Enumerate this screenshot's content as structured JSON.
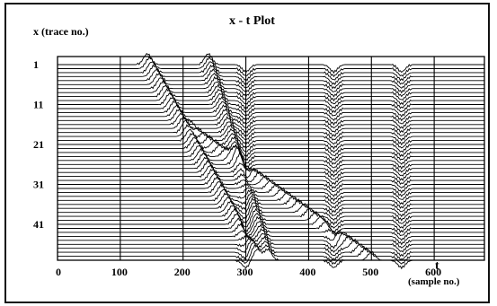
{
  "chart_data": {
    "type": "line",
    "title": "x - t Plot",
    "ylabel": "x  (trace no.)",
    "xlabel_main": "t",
    "xlabel_sub": "(sample no.)",
    "x_tick_labels": [
      "0",
      "100",
      "200",
      "300",
      "400",
      "500",
      "600"
    ],
    "x_ticks": [
      0,
      100,
      200,
      300,
      400,
      500,
      600
    ],
    "y_tick_labels": [
      "1",
      "11",
      "21",
      "31",
      "41"
    ],
    "y_ticks": [
      1,
      11,
      21,
      31,
      41
    ],
    "xlim": [
      0,
      680
    ],
    "ylim_traces": [
      1,
      50
    ],
    "trace_count": 50,
    "grid": true,
    "events": [
      {
        "t_first": 143,
        "t_last": 318,
        "polarity": "peak"
      },
      {
        "t_first": 240,
        "t_last": 335,
        "polarity": "peak"
      },
      {
        "t_first": 300,
        "t_last": 300,
        "polarity": "trough"
      },
      {
        "t_first": 440,
        "t_last": 440,
        "polarity": "trough"
      },
      {
        "t_first": 548,
        "t_last": 548,
        "polarity": "trough"
      },
      {
        "t_first": 215,
        "t_last": 500,
        "polarity": "peak",
        "start_trace": 18
      }
    ],
    "line_color": "#000000"
  }
}
